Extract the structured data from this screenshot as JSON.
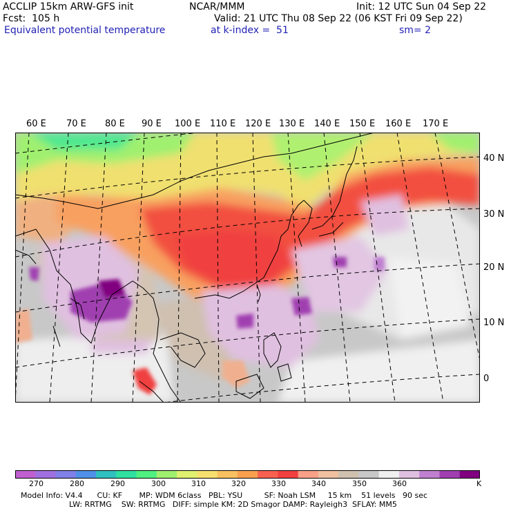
{
  "header": {
    "line1_left": "ACCLIP 15km ARW-GFS init",
    "line1_mid": "NCAR/MMM",
    "line1_right": "Init: 12 UTC Sun 04 Sep 22",
    "line2_left": "Fcst:  105 h",
    "line2_right": "Valid: 21 UTC Thu 08 Sep 22 (06 KST Fri 09 Sep 22)",
    "line3_left": "Equivalent potential temperature",
    "line3_mid": "at k-index =  51",
    "line3_right": "sm= 2"
  },
  "map": {
    "lon_labels": [
      "60 E",
      "70 E",
      "80 E",
      "90 E",
      "100 E",
      "110 E",
      "120 E",
      "130 E",
      "140 E",
      "150 E",
      "160 E",
      "170 E"
    ],
    "lat_labels": [
      "40 N",
      "30 N",
      "20 N",
      "10 N",
      "0"
    ],
    "colors": {
      "land_outline": "#000000",
      "grid": "#000000"
    }
  },
  "colorbar": {
    "unit": "K",
    "tick_labels": [
      "270",
      "280",
      "290",
      "300",
      "310",
      "320",
      "330",
      "340",
      "350",
      "360"
    ],
    "colors": [
      "#c060d0",
      "#a070e0",
      "#8080e8",
      "#5090e8",
      "#30c0c0",
      "#30e0a0",
      "#50f080",
      "#a0f070",
      "#e0f070",
      "#f8e070",
      "#f8c060",
      "#f8a050",
      "#f86050",
      "#f04040",
      "#f8a088",
      "#f0c0a0",
      "#d0c0b0",
      "#c8c8c8",
      "#f0f0f0",
      "#e0c0e0",
      "#c080d0",
      "#a040b0",
      "#800080"
    ]
  },
  "footer": {
    "line1": "Model Info: V4.4      CU: KF       MP: WDM 6class   PBL: YSU         SF: Noah LSM     15 km    51 levels   90 sec",
    "line2": "LW: RRTMG    SW: RRTMG   DIFF: simple KM: 2D Smagor DAMP: Rayleigh3  SFLAY: MM5"
  }
}
